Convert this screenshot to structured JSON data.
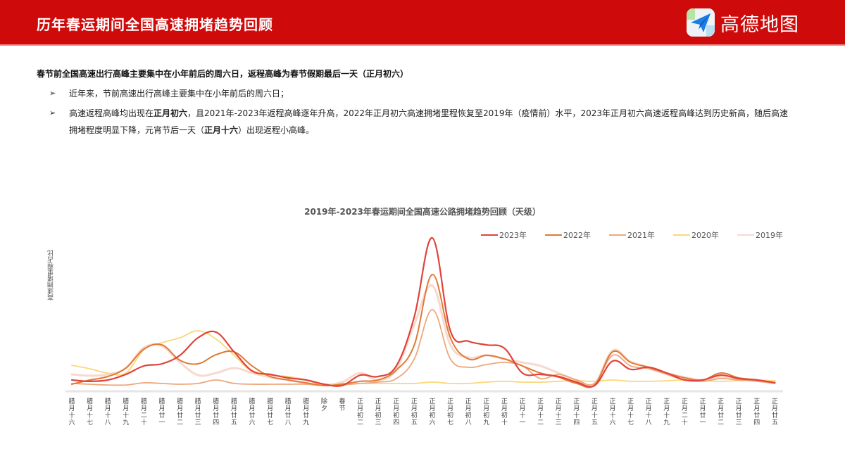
{
  "header": {
    "title": "历年春运期间全国高速拥堵趋势回顾",
    "logo_text": "高德地图",
    "background_color": "#cf0a0a"
  },
  "content": {
    "summary": "春节前全国高速出行高峰主要集中在小年前后的周六日，返程高峰为春节假期最后一天（正月初六）",
    "bullets": [
      {
        "parts": [
          {
            "text": "近年来，节前高速出行高峰主要集中在小年前后的周六日；",
            "bold": false
          }
        ]
      },
      {
        "parts": [
          {
            "text": "高速返程高峰均出现在",
            "bold": false
          },
          {
            "text": "正月初六",
            "bold": true
          },
          {
            "text": "，且2021年-2023年返程高峰逐年升高，2022年正月初六高速拥堵里程恢复至2019年（疫情前）水平，2023年正月初六高速返程高峰达到历史新高，随后高速拥堵程度明显下降，元宵节后一天（",
            "bold": false
          },
          {
            "text": "正月十六",
            "bold": true
          },
          {
            "text": "）出现返程小高峰。",
            "bold": false
          }
        ]
      }
    ]
  },
  "chart_data": {
    "type": "line",
    "title": "2019年-2023年春运期间全国高速公路拥堵趋势回顾（天级）",
    "xlabel": "",
    "ylabel": "高速拥堵里程占比",
    "ylim": [
      0,
      100
    ],
    "grid": false,
    "legend_position": "top-right",
    "categories": [
      "腊月十六",
      "腊月十七",
      "腊月十八",
      "腊月十九",
      "腊月二十",
      "腊月廿一",
      "腊月廿二",
      "腊月廿三",
      "腊月廿四",
      "腊月廿五",
      "腊月廿六",
      "腊月廿七",
      "腊月廿八",
      "腊月廿九",
      "除夕",
      "春节",
      "正月初二",
      "正月初三",
      "正月初四",
      "正月初五",
      "正月初六",
      "正月初七",
      "正月初八",
      "正月初九",
      "正月初十",
      "正月十一",
      "正月十二",
      "正月十三",
      "正月十四",
      "正月十五",
      "正月十六",
      "正月十七",
      "正月十八",
      "正月十九",
      "正月二十",
      "正月廿一",
      "正月廿二",
      "正月廿三",
      "正月廿四",
      "正月廿五"
    ],
    "series": [
      {
        "name": "2023年",
        "color": "#e0433a",
        "width": 2.2,
        "values": [
          5.6,
          4.7,
          5.6,
          9.3,
          14.9,
          16.3,
          21.9,
          33.5,
          37.2,
          24.2,
          11.6,
          9.3,
          7.0,
          5.6,
          2.8,
          1.9,
          8.8,
          7.9,
          14.9,
          47.4,
          99.5,
          38.1,
          31.2,
          28.8,
          26.5,
          10.2,
          9.3,
          7.9,
          4.2,
          1.9,
          18.1,
          12.6,
          14.0,
          10.2,
          5.6,
          5.6,
          8.8,
          6.5,
          5.6,
          3.7
        ]
      },
      {
        "name": "2022年",
        "color": "#e07a35",
        "width": 2.0,
        "values": [
          2.8,
          5.6,
          7.9,
          13.5,
          26.0,
          28.8,
          18.6,
          16.3,
          22.3,
          24.2,
          14.9,
          7.9,
          5.6,
          3.7,
          1.9,
          2.8,
          4.7,
          5.6,
          12.1,
          28.8,
          75.3,
          33.5,
          19.5,
          21.9,
          19.5,
          14.9,
          10.2,
          7.4,
          3.3,
          2.3,
          24.2,
          17.2,
          14.0,
          10.2,
          7.0,
          5.6,
          10.2,
          7.0,
          5.6,
          3.7
        ]
      },
      {
        "name": "2021年",
        "color": "#eda77e",
        "width": 1.8,
        "values": [
          3.3,
          2.8,
          2.3,
          2.3,
          3.7,
          3.3,
          2.8,
          3.3,
          5.6,
          3.3,
          2.8,
          2.8,
          2.8,
          2.8,
          1.9,
          2.3,
          3.3,
          4.2,
          6.5,
          19.5,
          52.1,
          19.5,
          14.0,
          15.8,
          17.2,
          14.9,
          6.5,
          9.3,
          5.6,
          3.3,
          21.9,
          14.9,
          13.0,
          9.3,
          5.6,
          4.7,
          6.5,
          5.6,
          4.7,
          3.3
        ]
      },
      {
        "name": "2020年",
        "color": "#fbd77a",
        "width": 1.8,
        "values": [
          15.3,
          13.0,
          10.2,
          10.2,
          25.6,
          30.2,
          33.5,
          38.1,
          32.6,
          21.9,
          11.2,
          8.8,
          7.9,
          5.6,
          1.9,
          3.3,
          3.3,
          3.3,
          3.3,
          3.3,
          4.2,
          3.3,
          3.3,
          4.2,
          4.7,
          4.2,
          4.2,
          4.7,
          5.1,
          4.7,
          5.6,
          4.7,
          4.7,
          5.1,
          5.6,
          5.1,
          4.7,
          5.1,
          5.1,
          5.1
        ]
      },
      {
        "name": "2019年",
        "color": "#f7d9cf",
        "width": 3.0,
        "values": [
          9.3,
          8.4,
          9.3,
          13.5,
          27.0,
          27.9,
          17.2,
          8.8,
          10.2,
          13.5,
          10.2,
          7.4,
          5.6,
          3.3,
          2.3,
          4.2,
          10.2,
          5.6,
          12.6,
          42.3,
          68.0,
          28.8,
          20.5,
          21.9,
          19.5,
          17.2,
          14.9,
          10.2,
          5.6,
          3.3,
          25.1,
          17.7,
          14.0,
          10.2,
          7.4,
          5.6,
          7.4,
          6.5,
          5.6,
          4.7
        ]
      }
    ]
  }
}
